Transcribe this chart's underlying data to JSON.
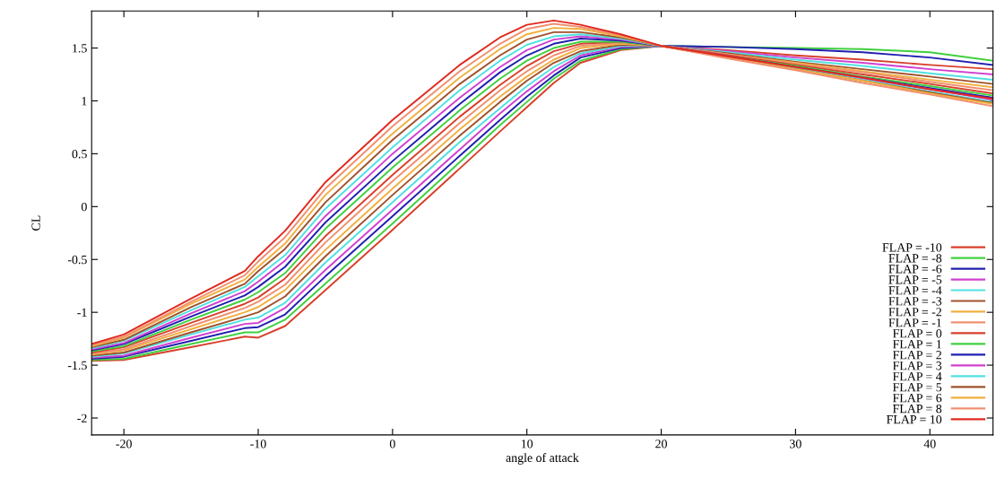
{
  "chart_data": {
    "type": "line",
    "xlabel": "angle of attack",
    "ylabel": "CL",
    "x": [
      -22.4,
      -20,
      -15,
      -11,
      -10,
      -8,
      -5,
      0,
      5,
      8,
      10,
      12,
      14,
      17,
      20,
      25,
      30,
      35,
      40,
      44.7
    ],
    "xlim": [
      -22.4,
      44.7
    ],
    "xticks": [
      -20,
      -10,
      0,
      10,
      20,
      30,
      40
    ],
    "ylim": [
      -2.16,
      1.85
    ],
    "yticks": [
      -2,
      -1.5,
      -1,
      -0.5,
      0,
      0.5,
      1,
      1.5
    ],
    "grid": false,
    "legend": "bottom right",
    "marker": "none",
    "line_style": "solid",
    "series": [
      {
        "name": "FLAP = -10",
        "color": "#d8402c",
        "values": [
          -1.46,
          -1.45,
          -1.33,
          -1.23,
          -1.24,
          -1.13,
          -0.79,
          -0.22,
          0.36,
          0.71,
          0.94,
          1.17,
          1.36,
          1.48,
          1.52,
          1.48,
          1.43,
          1.39,
          1.34,
          1.3
        ]
      },
      {
        "name": "FLAP = -8",
        "color": "#40d040",
        "values": [
          -1.45,
          -1.44,
          -1.3,
          -1.19,
          -1.19,
          -1.07,
          -0.73,
          -0.16,
          0.42,
          0.77,
          0.99,
          1.21,
          1.38,
          1.49,
          1.52,
          1.51,
          1.5,
          1.49,
          1.46,
          1.38
        ]
      },
      {
        "name": "FLAP = -6",
        "color": "#2020b0",
        "values": [
          -1.44,
          -1.42,
          -1.27,
          -1.15,
          -1.14,
          -1.02,
          -0.66,
          -0.09,
          0.48,
          0.82,
          1.04,
          1.24,
          1.41,
          1.5,
          1.52,
          1.51,
          1.49,
          1.46,
          1.41,
          1.34
        ]
      },
      {
        "name": "FLAP = -5",
        "color": "#d040d0",
        "values": [
          -1.43,
          -1.41,
          -1.24,
          -1.11,
          -1.1,
          -0.96,
          -0.6,
          -0.03,
          0.54,
          0.88,
          1.09,
          1.28,
          1.43,
          1.51,
          1.52,
          1.47,
          1.41,
          1.36,
          1.3,
          1.25
        ]
      },
      {
        "name": "FLAP = -4",
        "color": "#50e0e0",
        "values": [
          -1.42,
          -1.39,
          -1.21,
          -1.07,
          -1.05,
          -0.91,
          -0.53,
          0.04,
          0.61,
          0.93,
          1.14,
          1.32,
          1.45,
          1.52,
          1.52,
          1.46,
          1.39,
          1.33,
          1.26,
          1.2
        ]
      },
      {
        "name": "FLAP = -3",
        "color": "#a0522d",
        "values": [
          -1.41,
          -1.38,
          -1.19,
          -1.04,
          -1.0,
          -0.85,
          -0.47,
          0.11,
          0.67,
          0.99,
          1.19,
          1.36,
          1.47,
          1.53,
          1.52,
          1.45,
          1.37,
          1.3,
          1.23,
          1.16
        ]
      },
      {
        "name": "FLAP = -2",
        "color": "#f0b040",
        "values": [
          -1.4,
          -1.36,
          -1.16,
          -1.0,
          -0.95,
          -0.79,
          -0.41,
          0.17,
          0.73,
          1.04,
          1.23,
          1.39,
          1.5,
          1.54,
          1.52,
          1.44,
          1.36,
          1.28,
          1.2,
          1.13
        ]
      },
      {
        "name": "FLAP = -1",
        "color": "#f09070",
        "values": [
          -1.39,
          -1.35,
          -1.13,
          -0.96,
          -0.9,
          -0.74,
          -0.34,
          0.24,
          0.79,
          1.1,
          1.28,
          1.43,
          1.52,
          1.55,
          1.52,
          1.44,
          1.35,
          1.27,
          1.18,
          1.1
        ]
      },
      {
        "name": "FLAP = 0",
        "color": "#d8402c",
        "values": [
          -1.38,
          -1.33,
          -1.1,
          -0.92,
          -0.86,
          -0.68,
          -0.28,
          0.3,
          0.85,
          1.15,
          1.33,
          1.47,
          1.54,
          1.56,
          1.52,
          1.43,
          1.34,
          1.25,
          1.16,
          1.07
        ]
      },
      {
        "name": "FLAP = 1",
        "color": "#40d040",
        "values": [
          -1.37,
          -1.32,
          -1.07,
          -0.88,
          -0.81,
          -0.63,
          -0.21,
          0.37,
          0.91,
          1.21,
          1.38,
          1.5,
          1.56,
          1.56,
          1.52,
          1.42,
          1.33,
          1.23,
          1.14,
          1.05
        ]
      },
      {
        "name": "FLAP = 2",
        "color": "#2020b0",
        "values": [
          -1.36,
          -1.3,
          -1.04,
          -0.84,
          -0.76,
          -0.57,
          -0.15,
          0.43,
          0.97,
          1.27,
          1.43,
          1.54,
          1.59,
          1.57,
          1.52,
          1.42,
          1.32,
          1.22,
          1.12,
          1.03
        ]
      },
      {
        "name": "FLAP = 3",
        "color": "#d040d0",
        "values": [
          -1.35,
          -1.29,
          -1.01,
          -0.8,
          -0.71,
          -0.51,
          -0.09,
          0.5,
          1.03,
          1.32,
          1.48,
          1.58,
          1.61,
          1.58,
          1.52,
          1.42,
          1.31,
          1.21,
          1.11,
          1.01
        ]
      },
      {
        "name": "FLAP = 4",
        "color": "#50e0e0",
        "values": [
          -1.34,
          -1.27,
          -0.98,
          -0.76,
          -0.66,
          -0.46,
          -0.02,
          0.56,
          1.1,
          1.38,
          1.53,
          1.61,
          1.63,
          1.59,
          1.52,
          1.41,
          1.31,
          1.2,
          1.09,
          0.99
        ]
      },
      {
        "name": "FLAP = 5",
        "color": "#a0522d",
        "values": [
          -1.33,
          -1.26,
          -0.95,
          -0.73,
          -0.61,
          -0.4,
          0.04,
          0.63,
          1.16,
          1.43,
          1.58,
          1.65,
          1.65,
          1.6,
          1.52,
          1.41,
          1.3,
          1.19,
          1.08,
          0.98
        ]
      },
      {
        "name": "FLAP = 6",
        "color": "#f0b040",
        "values": [
          -1.32,
          -1.24,
          -0.92,
          -0.69,
          -0.57,
          -0.35,
          0.11,
          0.69,
          1.22,
          1.49,
          1.63,
          1.69,
          1.68,
          1.61,
          1.52,
          1.41,
          1.3,
          1.19,
          1.07,
          0.97
        ]
      },
      {
        "name": "FLAP = 8",
        "color": "#f09070",
        "values": [
          -1.31,
          -1.23,
          -0.9,
          -0.65,
          -0.52,
          -0.29,
          0.17,
          0.76,
          1.28,
          1.54,
          1.68,
          1.73,
          1.7,
          1.62,
          1.52,
          1.4,
          1.29,
          1.17,
          1.06,
          0.95
        ]
      },
      {
        "name": "FLAP = 10",
        "color": "#e02a20",
        "values": [
          -1.3,
          -1.21,
          -0.87,
          -0.61,
          -0.47,
          -0.23,
          0.23,
          0.82,
          1.34,
          1.6,
          1.72,
          1.76,
          1.72,
          1.63,
          1.52,
          1.42,
          1.32,
          1.22,
          1.11,
          1.02
        ]
      }
    ]
  }
}
